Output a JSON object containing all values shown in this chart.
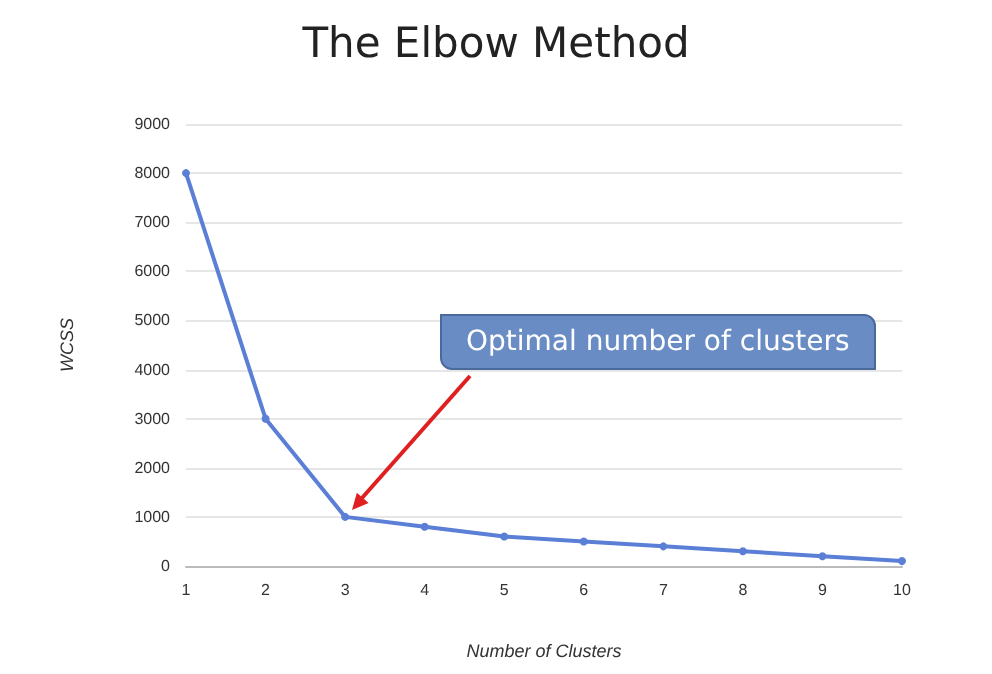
{
  "chart_data": {
    "type": "line",
    "title": "The Elbow Method",
    "xlabel": "Number of Clusters",
    "ylabel": "WCSS",
    "x": [
      1,
      2,
      3,
      4,
      5,
      6,
      7,
      8,
      9,
      10
    ],
    "series": [
      {
        "color": "#5b7fd6",
        "values": [
          8000,
          3000,
          1000,
          800,
          600,
          500,
          400,
          300,
          200,
          100
        ]
      }
    ],
    "xlim": [
      1,
      10
    ],
    "xticks": [
      1,
      2,
      3,
      4,
      5,
      6,
      7,
      8,
      9,
      10
    ],
    "ylim": [
      0,
      9000
    ],
    "yticks": [
      0,
      1000,
      2000,
      3000,
      4000,
      5000,
      6000,
      7000,
      8000,
      9000
    ],
    "grid": "y",
    "marker": "circle",
    "line_style": "solid",
    "annotations": [
      "Optimal number of clusters"
    ]
  }
}
